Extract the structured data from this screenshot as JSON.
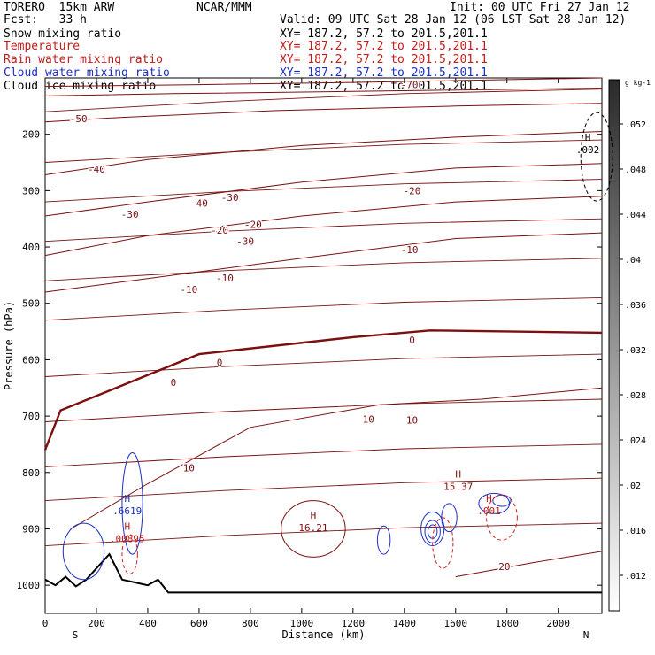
{
  "header": {
    "model": "TORERO  15km ARW",
    "center": "NCAR/MMM",
    "init": "Init: 00 UTC Fri 27 Jan 12",
    "fcst": "Fcst:   33 h",
    "valid": "Valid: 09 UTC Sat 28 Jan 12 (06 LST Sat 28 Jan 12)"
  },
  "fields": [
    {
      "name": "Snow mixing ratio",
      "xy": "XY= 187.2, 57.2 to 201.5,201.1",
      "color": "#000000"
    },
    {
      "name": "Temperature",
      "xy": "XY= 187.2, 57.2 to 201.5,201.1",
      "color": "#c41a1a"
    },
    {
      "name": "Rain water mixing ratio",
      "xy": "XY= 187.2, 57.2 to 201.5,201.1",
      "color": "#c41a1a"
    },
    {
      "name": "Cloud water mixing ratio",
      "xy": "XY= 187.2, 57.2 to 201.5,201.1",
      "color": "#1c2fc4"
    },
    {
      "name": "Cloud ice mixing ratio",
      "xy": "XY= 187.2, 57.2 to 201.5,201.1",
      "color": "#000000"
    }
  ],
  "chart_data": {
    "type": "cross-section contour",
    "xlabel": "Distance (km)",
    "ylabel": "Pressure (hPa)",
    "xlim": [
      0,
      2170
    ],
    "ylim": [
      1050,
      100
    ],
    "x_ticks": [
      0,
      200,
      400,
      600,
      800,
      1000,
      1200,
      1400,
      1600,
      1800,
      2000
    ],
    "y_ticks": [
      200,
      300,
      400,
      500,
      600,
      700,
      800,
      900,
      1000
    ],
    "x_end_labels": [
      "S",
      "N"
    ],
    "colorbar": {
      "unit": "g kg-1",
      "ticks": [
        ".052",
        ".048",
        ".044",
        ".04",
        ".036",
        ".032",
        ".028",
        ".024",
        ".02",
        ".016",
        ".012"
      ]
    },
    "temperature_contours_C": [
      {
        "value": -70,
        "label": "-70"
      },
      {
        "value": -50,
        "label": "-50"
      },
      {
        "value": -40,
        "label": "-40"
      },
      {
        "value": -30,
        "label": "-30"
      },
      {
        "value": -20,
        "label": "-20"
      },
      {
        "value": -10,
        "label": "-10"
      },
      {
        "value": 0,
        "label": "0"
      },
      {
        "value": 10,
        "label": "10"
      },
      {
        "value": 20,
        "label": "20"
      }
    ],
    "extrema": [
      {
        "type": "H",
        "x_km": 1045,
        "p_hPa": 885,
        "value": "16.21",
        "field": "Temperature"
      },
      {
        "type": "H",
        "x_km": 1610,
        "p_hPa": 812,
        "value": "15.37",
        "field": "Temperature"
      },
      {
        "type": "H",
        "x_km": 320,
        "p_hPa": 855,
        "value": ".6619",
        "field": "Cloud water mixing ratio"
      },
      {
        "type": "H",
        "x_km": 320,
        "p_hPa": 905,
        "value": ".00895",
        "field": "Rain water mixing ratio"
      },
      {
        "type": "H",
        "x_km": 2115,
        "p_hPa": 215,
        "value": ".002",
        "field": "Cloud ice mixing ratio"
      },
      {
        "type": "H",
        "x_km": 1730,
        "p_hPa": 855,
        "value": ".001",
        "field": "Rain water mixing ratio"
      }
    ]
  }
}
